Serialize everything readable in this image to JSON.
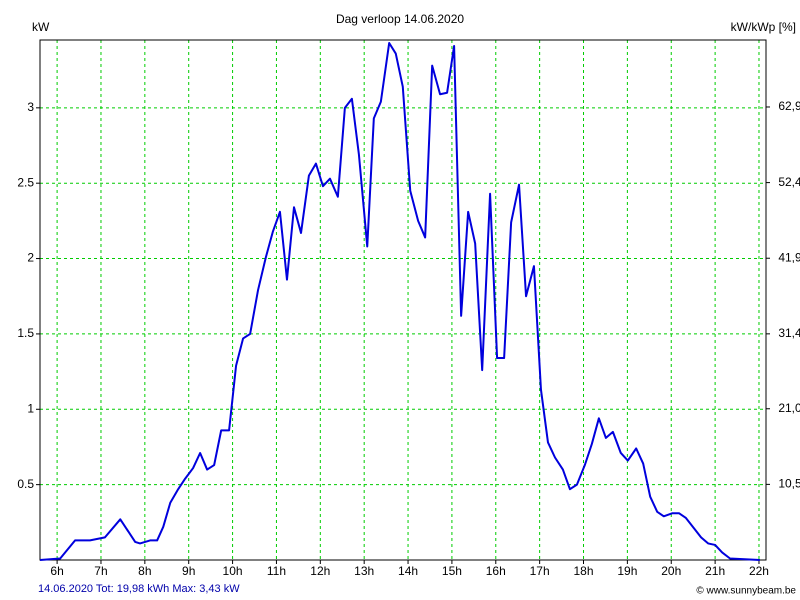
{
  "chart_data": {
    "type": "line",
    "title": "Dag  verloop 14.06.2020",
    "y_label": "kW",
    "y2_label": "kW/kWp [%]",
    "footer_left": "14.06.2020 Tot: 19,98 kWh Max: 3,43 kW",
    "footer_right": "© www.sunnybeam.be",
    "color": "#0000dd",
    "grid": true,
    "grid_color": "#00cc00",
    "xlim": [
      5.61,
      22.16
    ],
    "xticks": [
      {
        "value": 6,
        "label": "6h"
      },
      {
        "value": 7,
        "label": "7h"
      },
      {
        "value": 8,
        "label": "8h"
      },
      {
        "value": 9,
        "label": "9h"
      },
      {
        "value": 10,
        "label": "10h"
      },
      {
        "value": 11,
        "label": "11h"
      },
      {
        "value": 12,
        "label": "12h"
      },
      {
        "value": 13,
        "label": "13h"
      },
      {
        "value": 14,
        "label": "14h"
      },
      {
        "value": 15,
        "label": "15h"
      },
      {
        "value": 16,
        "label": "16h"
      },
      {
        "value": 17,
        "label": "17h"
      },
      {
        "value": 18,
        "label": "18h"
      },
      {
        "value": 19,
        "label": "19h"
      },
      {
        "value": 20,
        "label": "20h"
      },
      {
        "value": 21,
        "label": "21h"
      },
      {
        "value": 22,
        "label": "22h"
      }
    ],
    "ylim": [
      0,
      3.45
    ],
    "yticks": [
      0.5,
      1,
      1.5,
      2,
      2.5,
      3
    ],
    "y2lim": [
      0,
      72.2
    ],
    "y2ticks": [
      {
        "value": 10.5,
        "label": "10,5"
      },
      {
        "value": 21.0,
        "label": "21,0"
      },
      {
        "value": 31.4,
        "label": "31,4"
      },
      {
        "value": 41.9,
        "label": "41,9"
      },
      {
        "value": 52.4,
        "label": "52,4"
      },
      {
        "value": 62.9,
        "label": "62,9"
      }
    ],
    "x": [
      5.61,
      6.07,
      6.41,
      6.75,
      7.09,
      7.44,
      7.78,
      7.89,
      8.12,
      8.28,
      8.42,
      8.58,
      8.76,
      8.92,
      9.1,
      9.26,
      9.42,
      9.58,
      9.74,
      9.92,
      10.08,
      10.24,
      10.4,
      10.58,
      10.76,
      10.92,
      11.08,
      11.24,
      11.4,
      11.56,
      11.74,
      11.9,
      12.06,
      12.22,
      12.4,
      12.56,
      12.72,
      12.88,
      13.07,
      13.22,
      13.38,
      13.57,
      13.72,
      13.88,
      14.05,
      14.23,
      14.39,
      14.55,
      14.73,
      14.89,
      15.05,
      15.21,
      15.37,
      15.53,
      15.69,
      15.87,
      16.03,
      16.19,
      16.35,
      16.53,
      16.69,
      16.87,
      17.03,
      17.19,
      17.35,
      17.53,
      17.69,
      17.85,
      18.03,
      18.19,
      18.35,
      18.51,
      18.67,
      18.85,
      19.01,
      19.2,
      19.36,
      19.52,
      19.68,
      19.83,
      20.02,
      20.18,
      20.33,
      20.52,
      20.68,
      20.84,
      21.0,
      21.16,
      21.34,
      22.02
    ],
    "values": [
      0,
      0.01,
      0.13,
      0.13,
      0.15,
      0.27,
      0.12,
      0.11,
      0.13,
      0.13,
      0.22,
      0.38,
      0.47,
      0.54,
      0.61,
      0.71,
      0.6,
      0.63,
      0.86,
      0.86,
      1.29,
      1.47,
      1.5,
      1.79,
      2.01,
      2.18,
      2.31,
      1.86,
      2.34,
      2.17,
      2.55,
      2.63,
      2.48,
      2.53,
      2.41,
      3.0,
      3.06,
      2.69,
      2.08,
      2.93,
      3.04,
      3.43,
      3.36,
      3.14,
      2.45,
      2.25,
      2.14,
      3.28,
      3.09,
      3.1,
      3.41,
      1.62,
      2.31,
      2.1,
      1.26,
      2.43,
      1.34,
      1.34,
      2.24,
      2.49,
      1.75,
      1.95,
      1.13,
      0.78,
      0.68,
      0.6,
      0.47,
      0.5,
      0.63,
      0.77,
      0.94,
      0.81,
      0.85,
      0.71,
      0.66,
      0.74,
      0.64,
      0.42,
      0.32,
      0.29,
      0.31,
      0.31,
      0.28,
      0.21,
      0.15,
      0.11,
      0.1,
      0.05,
      0.01,
      0
    ]
  }
}
